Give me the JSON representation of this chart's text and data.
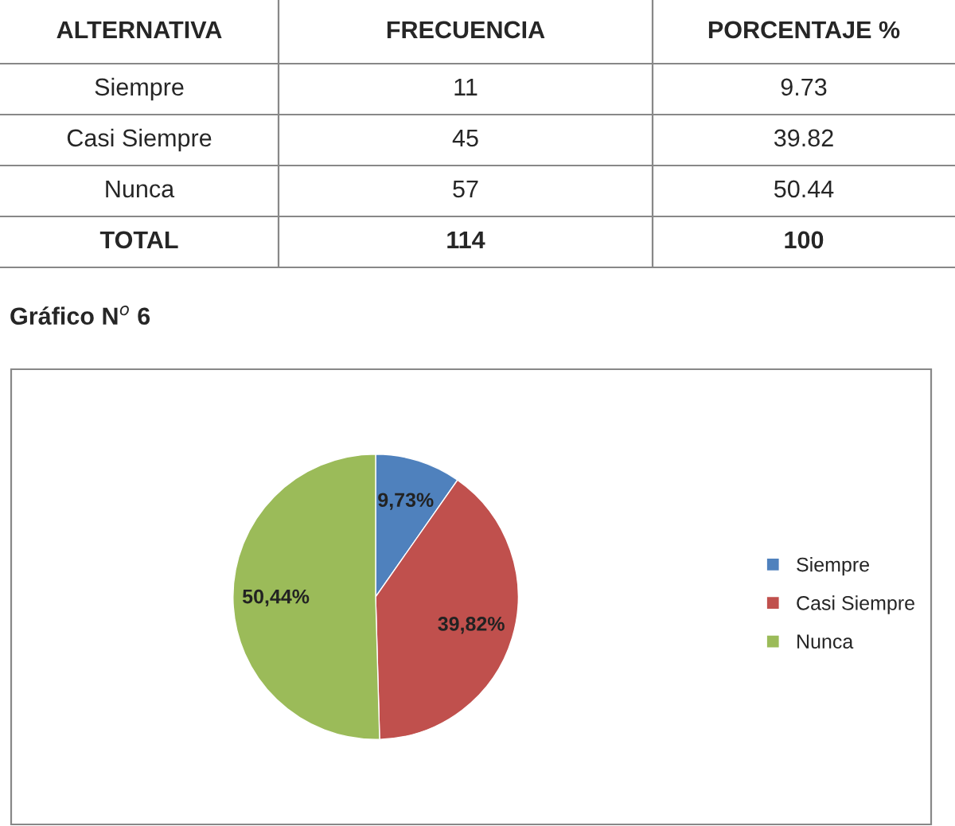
{
  "chart_data": {
    "type": "pie",
    "title": "Gráfico N$^{o}$ 6",
    "categories": [
      "Siempre",
      "Casi Siempre",
      "Nunca"
    ],
    "values": [
      9.73,
      39.82,
      50.44
    ],
    "colors": [
      "#4f81bd",
      "#c0504d",
      "#9bbb59"
    ],
    "value_labels": [
      "9,73%",
      "39,82%",
      "50,44%"
    ],
    "legend": "right",
    "annotations": [
      "ALTERNATIVA",
      "FRECUENCIA",
      "PORCENTAJE %",
      "Siempre",
      "11",
      "9.73",
      "Casi Siempre",
      "45",
      "39.82",
      "Nunca",
      "57",
      "50.44",
      "TOTAL",
      "114",
      "100"
    ]
  }
}
